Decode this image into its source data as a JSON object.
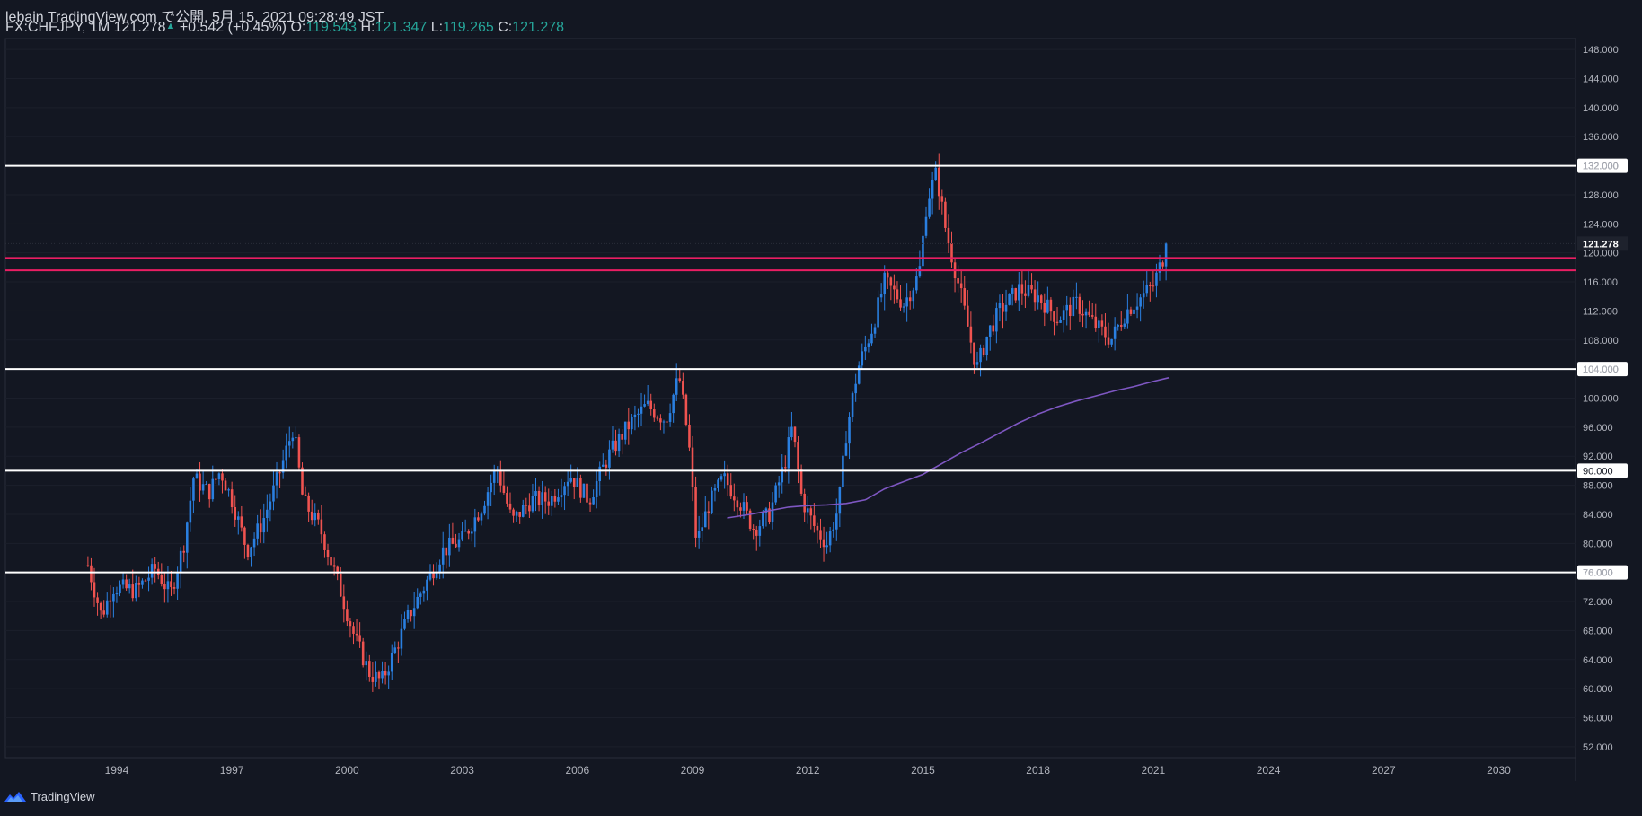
{
  "header": {
    "publisher_line": "lebain TradingView.com で公開, 5月 15, 2021 09:28:49 JST",
    "symbol": "FX:CHFJPY, 1M",
    "last": "121.278",
    "change_arrow": "▲",
    "change": "+0.542 (+0.45%)",
    "o_label": "O:",
    "o_value": "119.543",
    "h_label": "H:",
    "h_value": "121.347",
    "l_label": "L:",
    "l_value": "119.265",
    "c_label": "C:",
    "c_value": "121.278"
  },
  "footer": {
    "brand": "TradingView",
    "logo_icon": "tradingview-logo-icon"
  },
  "colors": {
    "background": "#131722",
    "up_candle": "#2a7fe0",
    "down_candle": "#ef5350",
    "ma_line": "#7e57c2",
    "support_line": "#ffffff",
    "resistance_zone": "#e91e63",
    "axis_text": "#b2b5be",
    "change_green": "#26a69a"
  },
  "chart_data": {
    "type": "candlestick",
    "symbol": "FX:CHFJPY",
    "interval": "1M",
    "x_ticks": [
      "1994",
      "1997",
      "2000",
      "2003",
      "2006",
      "2009",
      "2012",
      "2015",
      "2018",
      "2021",
      "2024",
      "2027",
      "2030"
    ],
    "x_range": [
      1991.1,
      2032.0
    ],
    "y_ticks": [
      "52.000",
      "56.000",
      "60.000",
      "64.000",
      "68.000",
      "72.000",
      "76.000",
      "80.000",
      "84.000",
      "88.000",
      "92.000",
      "96.000",
      "100.000",
      "104.000",
      "108.000",
      "112.000",
      "116.000",
      "120.000",
      "124.000",
      "128.000",
      "132.000",
      "136.000",
      "140.000",
      "144.000",
      "148.000"
    ],
    "y_range": [
      50.5,
      149.5
    ],
    "last_price_label": "121.278",
    "horizontal_lines": [
      {
        "price": 132.0,
        "label": "132.000",
        "color": "#ffffff"
      },
      {
        "price": 104.0,
        "label": "104.000",
        "color": "#ffffff"
      },
      {
        "price": 90.0,
        "label": "90.000",
        "color": "#ffffff"
      },
      {
        "price": 76.0,
        "label": "76.000",
        "color": "#ffffff"
      },
      {
        "price": 119.3,
        "label": "",
        "color": "#e91e63"
      },
      {
        "price": 117.6,
        "label": "",
        "color": "#e91e63"
      }
    ],
    "price_path": [
      [
        1993.25,
        77
      ],
      [
        1993.6,
        70
      ],
      [
        1993.9,
        74
      ],
      [
        1994.5,
        73.5
      ],
      [
        1995.0,
        76.5
      ],
      [
        1995.4,
        73
      ],
      [
        1995.75,
        80
      ],
      [
        1996.0,
        89
      ],
      [
        1996.4,
        87
      ],
      [
        1996.7,
        90
      ],
      [
        1997.0,
        86
      ],
      [
        1997.4,
        79
      ],
      [
        1997.8,
        83
      ],
      [
        1998.2,
        89
      ],
      [
        1998.6,
        96
      ],
      [
        1998.85,
        86
      ],
      [
        1999.3,
        82
      ],
      [
        1999.8,
        74
      ],
      [
        2000.2,
        67
      ],
      [
        2000.6,
        62
      ],
      [
        2000.9,
        61
      ],
      [
        2001.3,
        66
      ],
      [
        2001.6,
        70
      ],
      [
        2002.0,
        74
      ],
      [
        2002.5,
        79
      ],
      [
        2003.0,
        80.5
      ],
      [
        2003.5,
        85
      ],
      [
        2003.9,
        90.5
      ],
      [
        2004.3,
        83
      ],
      [
        2004.8,
        86
      ],
      [
        2005.3,
        86
      ],
      [
        2005.8,
        89.5
      ],
      [
        2006.3,
        86
      ],
      [
        2006.8,
        92
      ],
      [
        2007.3,
        96
      ],
      [
        2007.8,
        99
      ],
      [
        2008.3,
        97
      ],
      [
        2008.65,
        103
      ],
      [
        2008.9,
        94
      ],
      [
        2009.1,
        80
      ],
      [
        2009.4,
        85
      ],
      [
        2009.8,
        89
      ],
      [
        2010.2,
        86
      ],
      [
        2010.6,
        82
      ],
      [
        2011.0,
        84
      ],
      [
        2011.4,
        91
      ],
      [
        2011.6,
        96
      ],
      [
        2011.85,
        86
      ],
      [
        2012.2,
        82
      ],
      [
        2012.5,
        80
      ],
      [
        2012.8,
        85
      ],
      [
        2013.0,
        95
      ],
      [
        2013.3,
        104
      ],
      [
        2013.7,
        110
      ],
      [
        2014.0,
        116
      ],
      [
        2014.5,
        113
      ],
      [
        2014.9,
        117
      ],
      [
        2015.1,
        127
      ],
      [
        2015.35,
        131
      ],
      [
        2015.6,
        123
      ],
      [
        2016.0,
        114
      ],
      [
        2016.4,
        104
      ],
      [
        2016.7,
        109
      ],
      [
        2017.0,
        112
      ],
      [
        2017.5,
        115
      ],
      [
        2018.0,
        114
      ],
      [
        2018.5,
        111
      ],
      [
        2019.0,
        113
      ],
      [
        2019.5,
        110
      ],
      [
        2019.9,
        108
      ],
      [
        2020.3,
        112
      ],
      [
        2020.7,
        114
      ],
      [
        2021.0,
        115.5
      ],
      [
        2021.3,
        120
      ],
      [
        2021.37,
        121.278
      ]
    ],
    "moving_average": [
      [
        2009.9,
        83.5
      ],
      [
        2010.5,
        84
      ],
      [
        2011.0,
        84.5
      ],
      [
        2011.5,
        85
      ],
      [
        2012.0,
        85.2
      ],
      [
        2012.5,
        85.3
      ],
      [
        2013.0,
        85.5
      ],
      [
        2013.5,
        86
      ],
      [
        2014.0,
        87.5
      ],
      [
        2014.5,
        88.5
      ],
      [
        2015.0,
        89.5
      ],
      [
        2015.5,
        91
      ],
      [
        2016.0,
        92.5
      ],
      [
        2016.5,
        93.8
      ],
      [
        2017.0,
        95.2
      ],
      [
        2017.5,
        96.6
      ],
      [
        2018.0,
        97.8
      ],
      [
        2018.5,
        98.8
      ],
      [
        2019.0,
        99.6
      ],
      [
        2019.5,
        100.3
      ],
      [
        2020.0,
        101.0
      ],
      [
        2020.5,
        101.6
      ],
      [
        2021.0,
        102.3
      ],
      [
        2021.4,
        102.8
      ]
    ]
  }
}
